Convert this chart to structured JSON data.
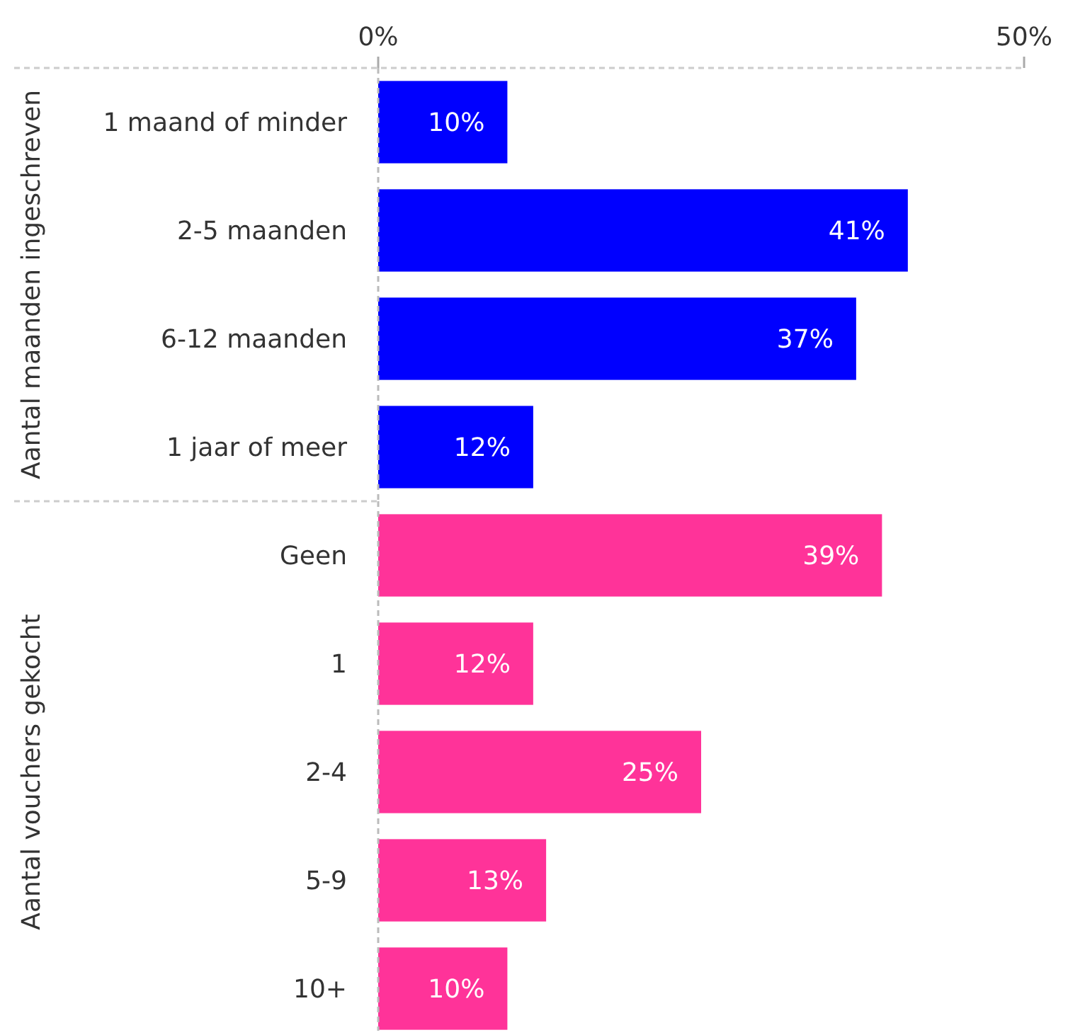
{
  "chart_data": [
    {
      "type": "bar",
      "orientation": "horizontal",
      "ylabel": "Aantal maanden ingeschreven",
      "categories": [
        "1 maand of minder",
        "2-5 maanden",
        "6-12 maanden",
        "1 jaar of meer"
      ],
      "values": [
        10,
        41,
        37,
        12
      ],
      "value_labels": [
        "10%",
        "41%",
        "37%",
        "12%"
      ],
      "color": "#0000ff",
      "xlim": [
        0,
        50
      ],
      "xticks": [
        {
          "value": 0,
          "label": "0%"
        },
        {
          "value": 50,
          "label": "50%"
        }
      ],
      "grid": false
    },
    {
      "type": "bar",
      "orientation": "horizontal",
      "ylabel": "Aantal vouchers gekocht",
      "categories": [
        "Geen",
        "1",
        "2-4",
        "5-9",
        "10+"
      ],
      "values": [
        39,
        12,
        25,
        13,
        10
      ],
      "value_labels": [
        "39%",
        "12%",
        "25%",
        "13%",
        "10%"
      ],
      "color": "#ff3399",
      "xlim": [
        0,
        50
      ],
      "tick_labels": "y",
      "grid": false
    }
  ]
}
